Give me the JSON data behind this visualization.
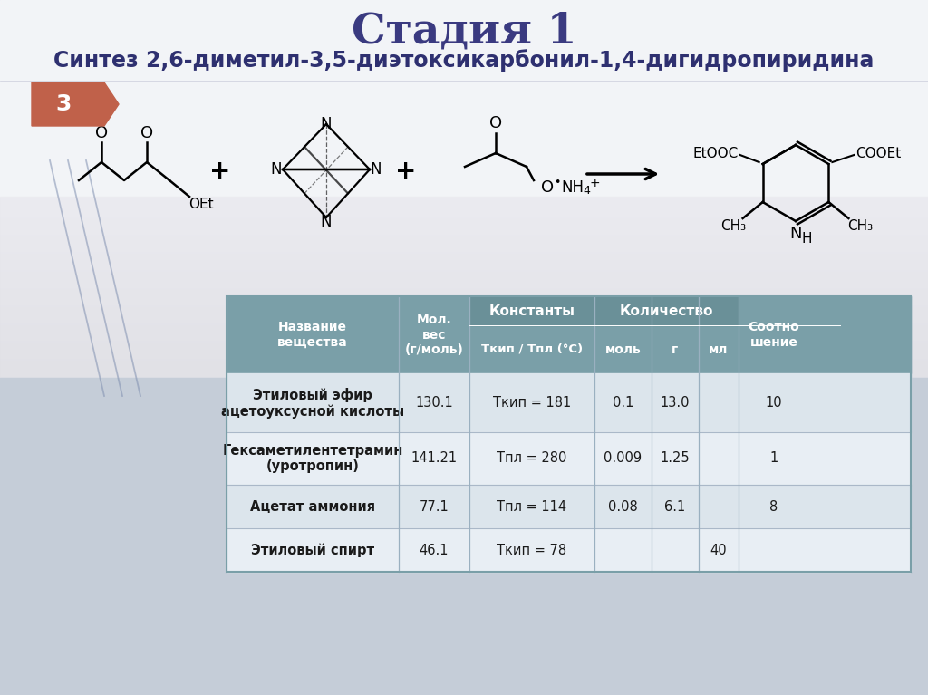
{
  "title": "Стадия 1",
  "subtitle": "Синтез 2,6-диметил-3,5-диэтоксикарбонил-1,4-дигидропиридина",
  "page_number": "3",
  "slide_bg_top": "#f0f2f5",
  "slide_bg_bottom": "#c8d0dc",
  "title_color": "#3a3a80",
  "subtitle_color": "#2e3070",
  "page_badge_color": "#c0614a",
  "table_header_bg": "#7a9fa8",
  "table_subheader_bg": "#6a9098",
  "table_row1_bg": "#e8edf2",
  "table_row2_bg": "#f0f4f7",
  "table_text_color": "#1a1a1a",
  "decor_line_color": "#8899bb",
  "table_rows": [
    [
      "Этиловый эфир\nацетоуксусной кислоты",
      "130.1",
      "Ткип = 181",
      "0.1",
      "13.0",
      "",
      "10"
    ],
    [
      "Гексаметилентетрамин\n(уротропин)",
      "141.21",
      "Тпл = 280",
      "0.009",
      "1.25",
      "",
      "1"
    ],
    [
      "Ацетат аммония",
      "77.1",
      "Тпл = 114",
      "0.08",
      "6.1",
      "",
      "8"
    ],
    [
      "Этиловый спирт",
      "46.1",
      "Ткип = 78",
      "",
      "",
      "40",
      ""
    ]
  ]
}
